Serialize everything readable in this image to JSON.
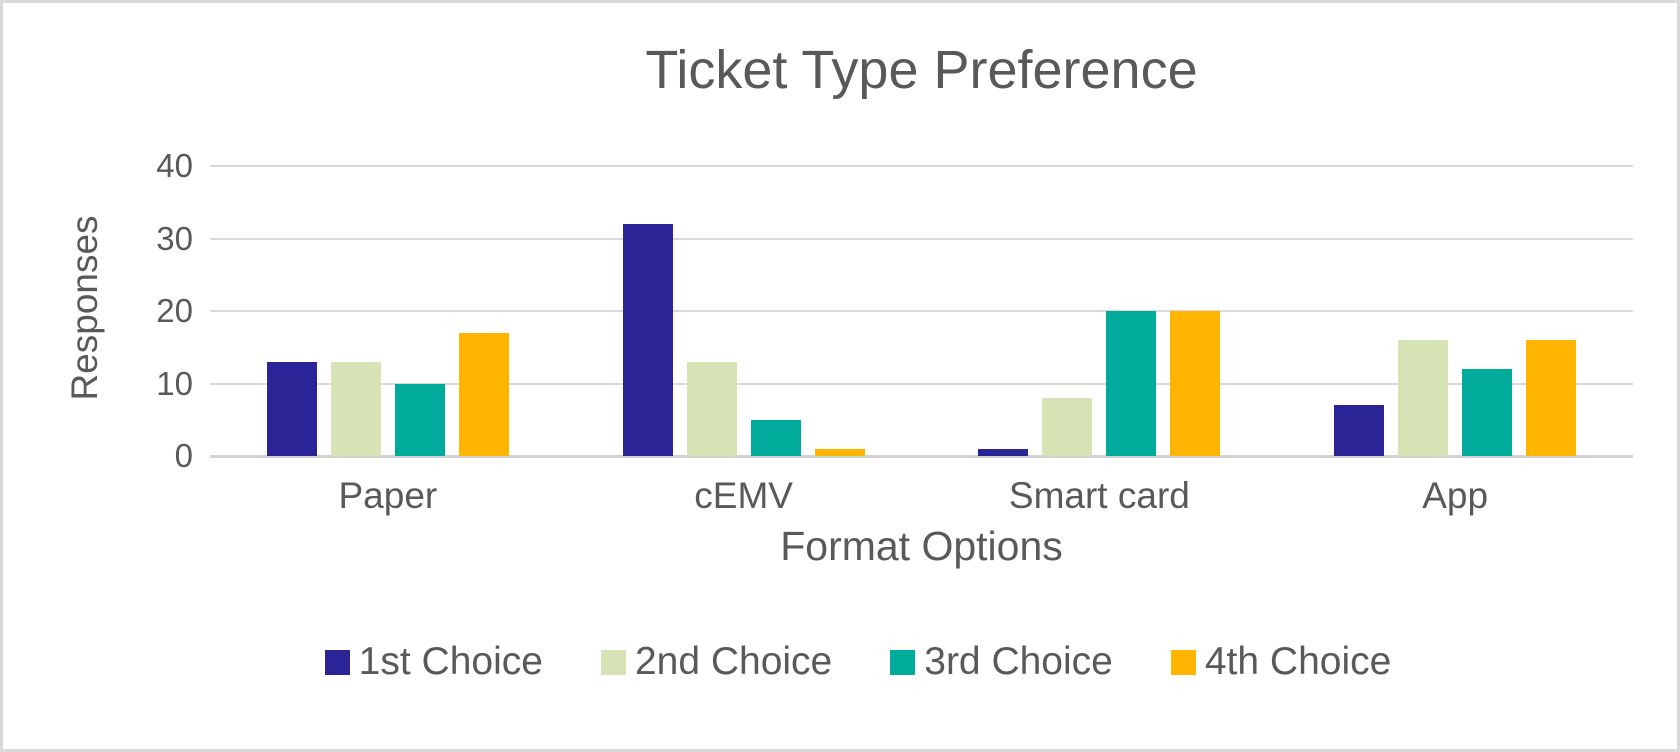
{
  "title": "Ticket Type Preference",
  "chart_data": {
    "type": "bar",
    "title": "Ticket Type Preference",
    "xlabel": "Format Options",
    "ylabel": "Responses",
    "categories": [
      "Paper",
      "cEMV",
      "Smart card",
      "App"
    ],
    "series": [
      {
        "name": "1st Choice",
        "color": "#2A2496",
        "values": [
          13,
          32,
          1,
          7
        ]
      },
      {
        "name": "2nd Choice",
        "color": "#D6E3B5",
        "values": [
          13,
          13,
          8,
          16
        ]
      },
      {
        "name": "3rd Choice",
        "color": "#00AB9B",
        "values": [
          10,
          5,
          20,
          12
        ]
      },
      {
        "name": "4th Choice",
        "color": "#FFB400",
        "values": [
          17,
          1,
          20,
          16
        ]
      }
    ],
    "ylim": [
      0,
      40
    ],
    "yticks": [
      0,
      10,
      20,
      30,
      40
    ],
    "grid": true,
    "legend_position": "bottom"
  },
  "colors": {
    "text": "#595959",
    "gridline": "#D9D9D9",
    "frame_border": "#D9D9D9",
    "background": "#FFFFFF"
  }
}
